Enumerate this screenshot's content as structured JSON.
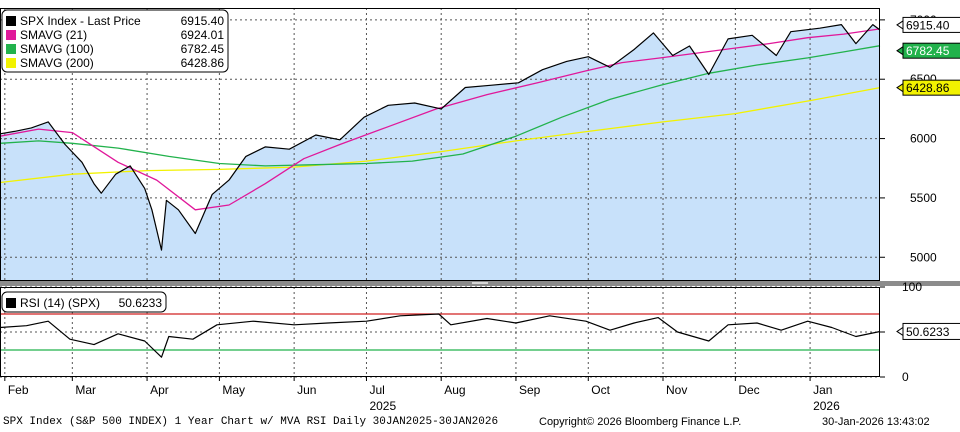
{
  "chart_data": [
    {
      "type": "line",
      "panel": "price",
      "legend_placement": "top-left",
      "grid": true,
      "ylim": [
        4800,
        7100
      ],
      "y_ticks": [
        5000,
        5500,
        6000,
        6500,
        7000
      ],
      "legend": [
        {
          "key": "px",
          "name": "SPX Index - Last Price",
          "value": "6915.40",
          "color": "#000000"
        },
        {
          "key": "s21",
          "name": "SMAVG (21)",
          "value": "6924.01",
          "color": "#e0189a"
        },
        {
          "key": "s100",
          "name": "SMAVG (100)",
          "value": "6782.45",
          "color": "#22b24c"
        },
        {
          "key": "s200",
          "name": "SMAVG (200)",
          "value": "6428.86",
          "color": "#f2f200"
        }
      ],
      "right_labels": [
        {
          "key": "px",
          "text": "6915.40",
          "value": 6915.4,
          "bg": "#ffffff",
          "fg": "#000000"
        },
        {
          "key": "s100",
          "text": "6782.45",
          "value": 6782.45,
          "bg": "#22b24c",
          "fg": "#ffffff"
        },
        {
          "key": "s200",
          "text": "6428.86",
          "value": 6428.86,
          "bg": "#f2f200",
          "fg": "#000000"
        }
      ],
      "series": [
        {
          "key": "px",
          "area_color": "#c8e1fa",
          "line_color": "#000000",
          "x": [
            "2025-01-30",
            "2025-02-05",
            "2025-02-12",
            "2025-02-19",
            "2025-02-26",
            "2025-03-05",
            "2025-03-10",
            "2025-03-13",
            "2025-03-19",
            "2025-03-25",
            "2025-03-31",
            "2025-04-03",
            "2025-04-07",
            "2025-04-09",
            "2025-04-14",
            "2025-04-21",
            "2025-04-28",
            "2025-05-05",
            "2025-05-12",
            "2025-05-20",
            "2025-05-30",
            "2025-06-10",
            "2025-06-20",
            "2025-06-30",
            "2025-07-10",
            "2025-07-21",
            "2025-08-01",
            "2025-08-11",
            "2025-08-22",
            "2025-09-02",
            "2025-09-12",
            "2025-09-22",
            "2025-10-01",
            "2025-10-10",
            "2025-10-20",
            "2025-10-28",
            "2025-11-05",
            "2025-11-12",
            "2025-11-20",
            "2025-11-28",
            "2025-12-08",
            "2025-12-18",
            "2025-12-24",
            "2026-01-05",
            "2026-01-14",
            "2026-01-20",
            "2026-01-27",
            "2026-01-30"
          ],
          "values": [
            6040,
            6060,
            6090,
            6140,
            5950,
            5800,
            5620,
            5540,
            5700,
            5770,
            5580,
            5400,
            5060,
            5480,
            5400,
            5200,
            5530,
            5650,
            5850,
            5930,
            5910,
            6030,
            5990,
            6180,
            6280,
            6300,
            6250,
            6430,
            6450,
            6470,
            6580,
            6650,
            6690,
            6600,
            6750,
            6890,
            6700,
            6780,
            6540,
            6840,
            6870,
            6700,
            6900,
            6930,
            6960,
            6800,
            6960,
            6915
          ]
        },
        {
          "key": "s21",
          "line_color": "#e0189a",
          "x": [
            "2025-01-30",
            "2025-02-15",
            "2025-03-01",
            "2025-03-20",
            "2025-04-05",
            "2025-04-21",
            "2025-05-05",
            "2025-05-20",
            "2025-06-05",
            "2025-06-20",
            "2025-07-10",
            "2025-07-30",
            "2025-08-20",
            "2025-09-10",
            "2025-09-30",
            "2025-10-15",
            "2025-10-31",
            "2025-11-15",
            "2025-11-30",
            "2025-12-15",
            "2025-12-31",
            "2026-01-15",
            "2026-01-30"
          ],
          "values": [
            6020,
            6080,
            6050,
            5800,
            5650,
            5400,
            5440,
            5620,
            5830,
            5950,
            6100,
            6250,
            6370,
            6470,
            6570,
            6640,
            6680,
            6720,
            6760,
            6800,
            6850,
            6880,
            6924
          ]
        },
        {
          "key": "s100",
          "line_color": "#22b24c",
          "x": [
            "2025-01-30",
            "2025-02-15",
            "2025-03-01",
            "2025-03-20",
            "2025-04-10",
            "2025-05-01",
            "2025-05-20",
            "2025-06-10",
            "2025-07-01",
            "2025-07-20",
            "2025-08-10",
            "2025-09-01",
            "2025-09-20",
            "2025-10-10",
            "2025-10-31",
            "2025-11-20",
            "2025-12-10",
            "2025-12-31",
            "2026-01-15",
            "2026-01-30"
          ],
          "values": [
            5960,
            5980,
            5960,
            5920,
            5850,
            5790,
            5770,
            5780,
            5790,
            5810,
            5870,
            6020,
            6180,
            6330,
            6450,
            6550,
            6620,
            6680,
            6730,
            6782
          ]
        },
        {
          "key": "s200",
          "line_color": "#f2f200",
          "x": [
            "2025-01-30",
            "2025-03-01",
            "2025-04-01",
            "2025-05-01",
            "2025-06-01",
            "2025-07-01",
            "2025-08-01",
            "2025-09-01",
            "2025-10-01",
            "2025-11-01",
            "2025-12-01",
            "2026-01-01",
            "2026-01-30"
          ],
          "values": [
            5630,
            5700,
            5730,
            5740,
            5760,
            5810,
            5890,
            5980,
            6060,
            6140,
            6210,
            6320,
            6429
          ]
        }
      ]
    },
    {
      "type": "line",
      "panel": "rsi",
      "legend_placement": "top-left",
      "grid": true,
      "ylim": [
        0,
        100
      ],
      "y_ticks": [
        0,
        50,
        100
      ],
      "overbought": 70,
      "oversold": 30,
      "legend": [
        {
          "key": "rsi",
          "name": "RSI (14) (SPX)",
          "value": "50.6233",
          "color": "#000000"
        }
      ],
      "right_labels": [
        {
          "key": "rsi",
          "text": "50.6233",
          "value": 50.6233,
          "bg": "#ffffff",
          "fg": "#000000"
        }
      ],
      "series": [
        {
          "key": "rsi",
          "line_color": "#000000",
          "x": [
            "2025-01-30",
            "2025-02-10",
            "2025-02-19",
            "2025-02-28",
            "2025-03-10",
            "2025-03-20",
            "2025-03-31",
            "2025-04-07",
            "2025-04-10",
            "2025-04-20",
            "2025-04-30",
            "2025-05-15",
            "2025-06-01",
            "2025-06-15",
            "2025-07-01",
            "2025-07-15",
            "2025-07-31",
            "2025-08-05",
            "2025-08-20",
            "2025-09-01",
            "2025-09-15",
            "2025-09-30",
            "2025-10-10",
            "2025-10-20",
            "2025-10-30",
            "2025-11-07",
            "2025-11-20",
            "2025-11-28",
            "2025-12-10",
            "2025-12-20",
            "2025-12-31",
            "2026-01-10",
            "2026-01-20",
            "2026-01-30"
          ],
          "values": [
            55,
            57,
            62,
            42,
            36,
            48,
            40,
            22,
            45,
            42,
            58,
            62,
            58,
            60,
            62,
            68,
            70,
            58,
            65,
            60,
            68,
            62,
            52,
            60,
            66,
            50,
            40,
            58,
            60,
            52,
            62,
            55,
            45,
            50.6
          ]
        }
      ]
    }
  ],
  "x_axis": {
    "month_labels": [
      {
        "text": "Feb",
        "date": "2025-02-01"
      },
      {
        "text": "Mar",
        "date": "2025-03-01"
      },
      {
        "text": "Apr",
        "date": "2025-04-01"
      },
      {
        "text": "May",
        "date": "2025-05-01"
      },
      {
        "text": "Jun",
        "date": "2025-06-01"
      },
      {
        "text": "Jul",
        "date": "2025-07-01"
      },
      {
        "text": "Aug",
        "date": "2025-08-01"
      },
      {
        "text": "Sep",
        "date": "2025-09-01"
      },
      {
        "text": "Oct",
        "date": "2025-10-01"
      },
      {
        "text": "Nov",
        "date": "2025-11-01"
      },
      {
        "text": "Dec",
        "date": "2025-12-01"
      },
      {
        "text": "Jan",
        "date": "2026-01-01"
      }
    ],
    "year_labels": [
      {
        "text": "2025",
        "date": "2025-07-01"
      },
      {
        "text": "2026",
        "date": "2026-01-01"
      }
    ],
    "range": [
      "2025-01-30",
      "2026-01-30"
    ]
  },
  "footer": {
    "left": "SPX Index (S&P 500 INDEX) 1 Year Chart w/ MVA RSI Daily 30JAN2025-30JAN2026",
    "center": "Copyright© 2026 Bloomberg Finance L.P.",
    "right": "30-Jan-2026 13:43:02"
  }
}
